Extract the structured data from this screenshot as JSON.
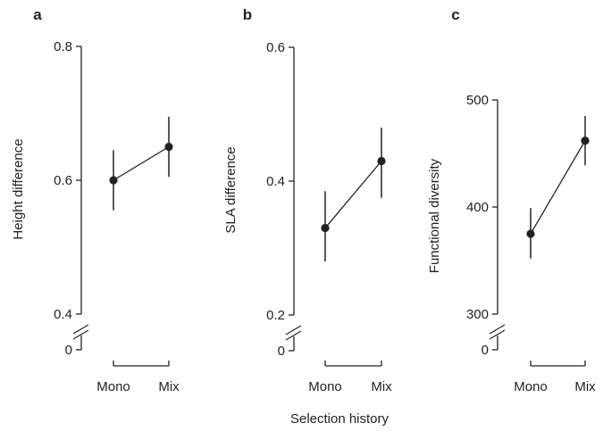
{
  "figure": {
    "xlabel": "Selection history"
  },
  "chart_data": [
    {
      "type": "scatter",
      "panel": "a",
      "ylabel": "Height difference",
      "categories": [
        "Mono",
        "Mix"
      ],
      "values": [
        0.6,
        0.65
      ],
      "errors": [
        [
          0.555,
          0.645
        ],
        [
          0.605,
          0.695
        ]
      ],
      "ylim": [
        0.4,
        0.8
      ],
      "yticks": [
        0.4,
        0.6,
        0.8
      ],
      "ytick_labels": [
        "0.4",
        "0.6",
        "0.8"
      ],
      "axis_break": true,
      "zero_label": "0"
    },
    {
      "type": "scatter",
      "panel": "b",
      "ylabel": "SLA difference",
      "categories": [
        "Mono",
        "Mix"
      ],
      "values": [
        0.33,
        0.43
      ],
      "errors": [
        [
          0.28,
          0.385
        ],
        [
          0.375,
          0.48
        ]
      ],
      "ylim": [
        0.2,
        0.6
      ],
      "yticks": [
        0.2,
        0.4,
        0.6
      ],
      "ytick_labels": [
        "0.2",
        "0.4",
        "0.6"
      ],
      "axis_break": true,
      "zero_label": "0"
    },
    {
      "type": "scatter",
      "panel": "c",
      "ylabel": "Functional diversity",
      "categories": [
        "Mono",
        "Mix"
      ],
      "values": [
        375,
        462
      ],
      "errors": [
        [
          352,
          399
        ],
        [
          439,
          485
        ]
      ],
      "ylim": [
        300,
        500
      ],
      "yticks": [
        300,
        400,
        500
      ],
      "ytick_labels": [
        "300",
        "400",
        "500"
      ],
      "axis_break": true,
      "zero_label": "0"
    }
  ]
}
